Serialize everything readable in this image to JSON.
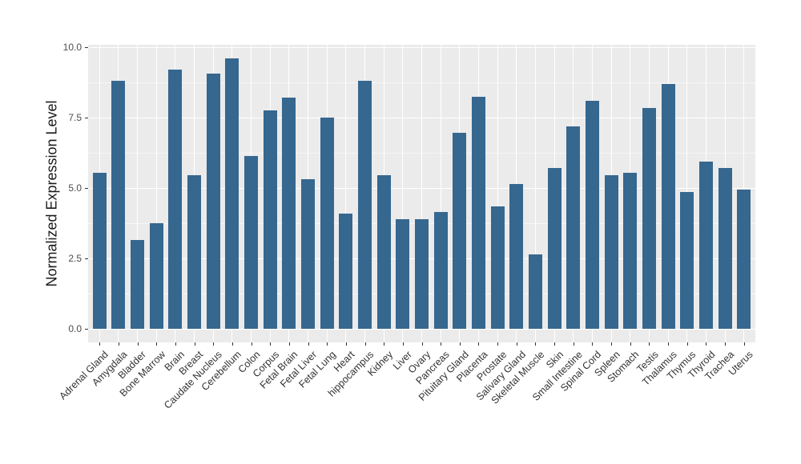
{
  "chart_data": {
    "type": "bar",
    "title": "",
    "xlabel": "",
    "ylabel": "Normalized Expression Level",
    "ylim": [
      0,
      10
    ],
    "grid": true,
    "legend": false,
    "yticks": [
      0.0,
      2.5,
      5.0,
      7.5,
      10.0
    ],
    "ytick_labels": [
      "0.0",
      "2.5",
      "5.0",
      "7.5",
      "10.0"
    ],
    "categories": [
      "Adrenal Gland",
      "Amygdala",
      "Bladder",
      "Bone Marrow",
      "Brain",
      "Breast",
      "Caudate Nucleus",
      "Cerebellum",
      "Colon",
      "Corpus",
      "Fetal Brain",
      "Fetal Liver",
      "Fetal Lung",
      "Heart",
      "hippocampus",
      "Kidney",
      "Liver",
      "Ovary",
      "Pancreas",
      "Pituitary Gland",
      "Placenta",
      "Prostate",
      "Salivary Gland",
      "Skeletal Muscle",
      "Skin",
      "Small Intestine",
      "Spinal Cord",
      "Spleen",
      "Stomach",
      "Testis",
      "Thalamus",
      "Thymus",
      "Thyroid",
      "Trachea",
      "Uterus"
    ],
    "values": [
      5.55,
      8.8,
      3.15,
      3.75,
      9.2,
      5.45,
      9.05,
      9.6,
      6.15,
      7.75,
      8.2,
      5.3,
      7.5,
      4.1,
      8.8,
      5.45,
      3.9,
      3.9,
      4.15,
      6.95,
      8.25,
      4.35,
      5.15,
      2.65,
      5.7,
      7.2,
      8.1,
      5.45,
      5.55,
      7.85,
      8.7,
      4.85,
      5.95,
      5.7,
      4.95
    ],
    "colors": {
      "bar": "#36678F",
      "panel_background": "#EBEBEB",
      "grid_major": "#FFFFFF",
      "axis_text": "#4D4D4D",
      "axis_title": "#1a1a1a",
      "tick_mark": "#333333",
      "figure_background": "#FFFFFF"
    }
  }
}
